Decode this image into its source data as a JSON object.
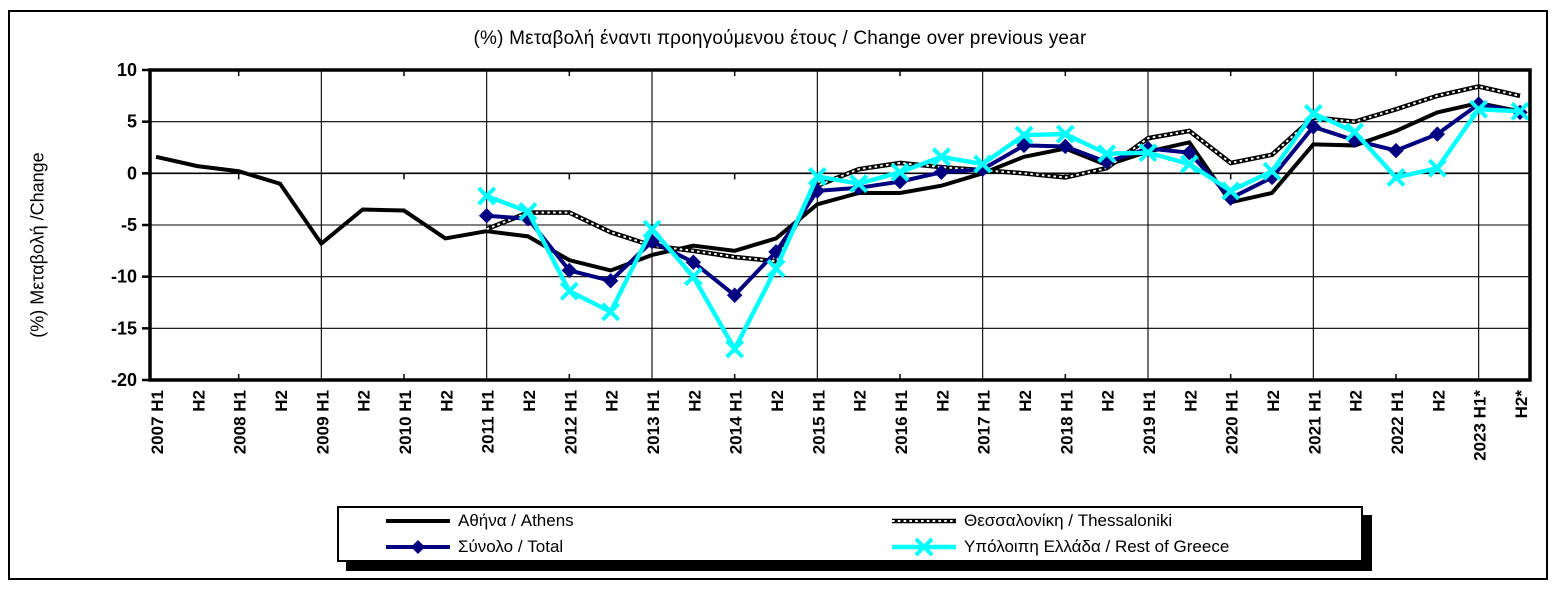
{
  "chart_data": {
    "type": "line",
    "title": "(%) Μεταβολή έναντι προηγούμενου έτους / Change over previous year",
    "ylabel": "(%) Μεταβολή /Change",
    "ylim": [
      -20,
      10
    ],
    "yticks": [
      10,
      5,
      0,
      -5,
      -10,
      -15,
      -20
    ],
    "grid": "on",
    "legend_position": "bottom",
    "x_categories": [
      "2007 H1",
      "H2",
      "2008 H1",
      "H2",
      "2009 H1",
      "H2",
      "2010 H1",
      "H2",
      "2011 H1",
      "H2",
      "2012 H1",
      "H2",
      "2013 H1",
      "H2",
      "2014 H1",
      "H2",
      "2015 H1",
      "H2",
      "2016 H1",
      "H2",
      "2017 H1",
      "H2",
      "2018 H1",
      "H2",
      "2019 H1",
      "H2",
      "2020 H1",
      "H2",
      "2021 H1",
      "H2",
      "2022 H1",
      "H2",
      "2023 H1*",
      "H2*"
    ],
    "vertical_gridline_indices": [
      4,
      8,
      12,
      16,
      20,
      24,
      28,
      32
    ],
    "minor_tick_indices": [
      2,
      6,
      10,
      14,
      18,
      22,
      26,
      30
    ],
    "series": [
      {
        "name": "Αθήνα / Athens",
        "color": "#000000",
        "style": "solid",
        "marker": "none",
        "values": [
          1.6,
          0.7,
          0.2,
          -1.0,
          -6.8,
          -3.5,
          -3.6,
          -6.3,
          -5.6,
          -6.1,
          -8.4,
          -9.4,
          -7.9,
          -7.0,
          -7.5,
          -6.3,
          -3.0,
          -1.9,
          -1.9,
          -1.2,
          0.0,
          1.6,
          2.4,
          0.8,
          2.1,
          3.0,
          -2.8,
          -1.9,
          2.8,
          2.7,
          4.1,
          5.9,
          6.8,
          6.0
        ]
      },
      {
        "name": "Θεσσαλονίκη / Thessaloniki",
        "color": "#000000",
        "style": "dotted",
        "marker": "none",
        "values": [
          null,
          null,
          null,
          null,
          null,
          null,
          null,
          null,
          -5.4,
          -3.8,
          -3.8,
          -5.7,
          -7.0,
          -7.5,
          -8.1,
          -8.5,
          -1.2,
          0.4,
          1.0,
          0.6,
          0.3,
          0.0,
          -0.4,
          0.5,
          3.4,
          4.1,
          1.0,
          1.8,
          5.4,
          5.0,
          6.2,
          7.5,
          8.4,
          7.5
        ]
      },
      {
        "name": "Σύνολο / Total",
        "color": "#000080",
        "style": "solid",
        "marker": "diamond",
        "values": [
          null,
          null,
          null,
          null,
          null,
          null,
          null,
          null,
          -4.1,
          -4.4,
          -9.4,
          -10.4,
          -6.6,
          -8.6,
          -11.8,
          -7.6,
          -1.7,
          -1.4,
          -0.8,
          0.1,
          0.4,
          2.7,
          2.6,
          1.1,
          2.4,
          2.0,
          -2.4,
          -0.4,
          4.5,
          3.2,
          2.2,
          3.8,
          6.7,
          5.9
        ]
      },
      {
        "name": "Υπόλοιπη Ελλάδα / Rest of Greece",
        "color": "#00FFFF",
        "style": "solid",
        "marker": "x",
        "values": [
          null,
          null,
          null,
          null,
          null,
          null,
          null,
          null,
          -2.2,
          -3.7,
          -11.4,
          -13.4,
          -5.4,
          -10.0,
          -17.0,
          -9.2,
          -0.3,
          -1.0,
          0.1,
          1.6,
          0.9,
          3.7,
          3.8,
          1.9,
          2.0,
          0.9,
          -1.7,
          0.2,
          5.8,
          4.0,
          -0.4,
          0.5,
          6.2,
          6.0
        ]
      }
    ]
  }
}
